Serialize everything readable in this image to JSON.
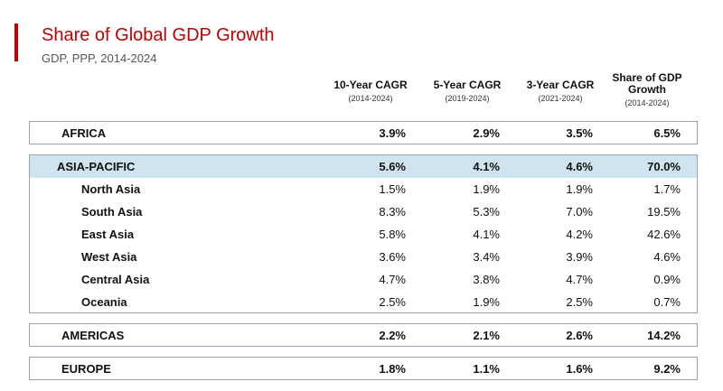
{
  "title": "Share of Global GDP Growth",
  "subtitle": "GDP, PPP, 2014-2024",
  "colors": {
    "accent": "#c00000",
    "highlight": "#cfe4ee",
    "border": "#9aa3ad"
  },
  "chart_data": {
    "type": "table",
    "columns": [
      {
        "header": "10-Year CAGR",
        "period": "(2014-2024)"
      },
      {
        "header": "5-Year CAGR",
        "period": "(2019-2024)"
      },
      {
        "header": "3-Year CAGR",
        "period": "(2021-2024)"
      },
      {
        "header": "Share of GDP Growth",
        "period": "(2014-2024)"
      }
    ],
    "regions": [
      {
        "name": "AFRICA",
        "values": [
          "3.9%",
          "2.9%",
          "3.5%",
          "6.5%"
        ],
        "highlight": false,
        "children": []
      },
      {
        "name": "ASIA-PACIFIC",
        "values": [
          "5.6%",
          "4.1%",
          "4.6%",
          "70.0%"
        ],
        "highlight": true,
        "children": [
          {
            "name": "North Asia",
            "values": [
              "1.5%",
              "1.9%",
              "1.9%",
              "1.7%"
            ]
          },
          {
            "name": "South Asia",
            "values": [
              "8.3%",
              "5.3%",
              "7.0%",
              "19.5%"
            ]
          },
          {
            "name": "East Asia",
            "values": [
              "5.8%",
              "4.1%",
              "4.2%",
              "42.6%"
            ]
          },
          {
            "name": "West Asia",
            "values": [
              "3.6%",
              "3.4%",
              "3.9%",
              "4.6%"
            ]
          },
          {
            "name": "Central Asia",
            "values": [
              "4.7%",
              "3.8%",
              "4.7%",
              "0.9%"
            ]
          },
          {
            "name": "Oceania",
            "values": [
              "2.5%",
              "1.9%",
              "2.5%",
              "0.7%"
            ]
          }
        ]
      },
      {
        "name": "AMERICAS",
        "values": [
          "2.2%",
          "2.1%",
          "2.6%",
          "14.2%"
        ],
        "highlight": false,
        "children": []
      },
      {
        "name": "EUROPE",
        "values": [
          "1.8%",
          "1.1%",
          "1.6%",
          "9.2%"
        ],
        "highlight": false,
        "children": []
      }
    ]
  }
}
